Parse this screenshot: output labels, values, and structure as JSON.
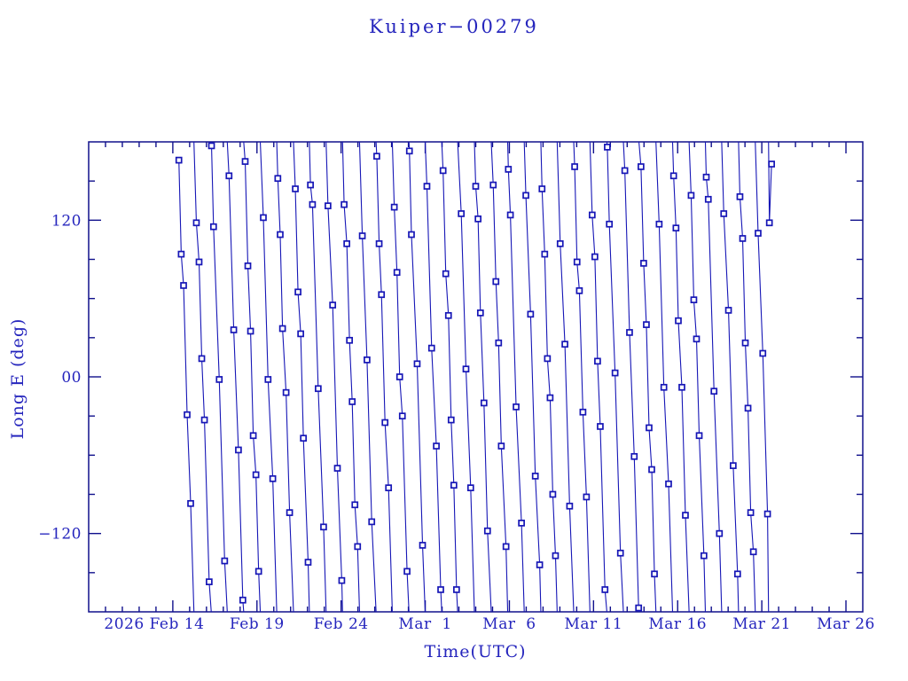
{
  "chart_data": {
    "type": "line",
    "title": "Kuiper−00279",
    "xlabel": "Time(UTC)",
    "ylabel": "Long E (deg)",
    "x_axis": {
      "domain_days": [
        0,
        46
      ],
      "minor_tick_every_days": 1,
      "major_tick_every_days": 5,
      "year_prefix": "2026",
      "ticks": [
        {
          "day": 5,
          "label": "Feb 14"
        },
        {
          "day": 10,
          "label": "Feb 19"
        },
        {
          "day": 15,
          "label": "Feb 24"
        },
        {
          "day": 20,
          "label": "Mar  1"
        },
        {
          "day": 25,
          "label": "Mar  6"
        },
        {
          "day": 30,
          "label": "Mar 11"
        },
        {
          "day": 35,
          "label": "Mar 16"
        },
        {
          "day": 40,
          "label": "Mar 21"
        },
        {
          "day": 45,
          "label": "Mar 26"
        }
      ]
    },
    "y_axis": {
      "range": [
        -180,
        180
      ],
      "minor_tick_every_deg": 30,
      "major_tick_every_deg": 120,
      "ticks": [
        {
          "value": 120,
          "label": "120"
        },
        {
          "value": 0,
          "label": "00"
        },
        {
          "value": -120,
          "label": "−120"
        }
      ]
    },
    "wrap_at_deg": 180,
    "grid": false,
    "legend": "none",
    "marker": "open-square",
    "colors": {
      "background": "#ffffff",
      "frame": "#10108c",
      "series": "#1616b6",
      "text": "#2525bd",
      "marker_fill": "#ffffff"
    },
    "series": [
      {
        "name": "Long E",
        "points": [
          [
            5.36,
            166
          ],
          [
            5.5,
            94
          ],
          [
            5.64,
            70
          ],
          [
            5.85,
            -29
          ],
          [
            6.06,
            -97
          ],
          [
            6.4,
            118
          ],
          [
            6.56,
            88
          ],
          [
            6.72,
            14
          ],
          [
            6.88,
            -33
          ],
          [
            7.16,
            -157
          ],
          [
            7.3,
            177
          ],
          [
            7.42,
            115
          ],
          [
            7.76,
            -2
          ],
          [
            8.08,
            -141
          ],
          [
            8.34,
            154
          ],
          [
            8.62,
            36
          ],
          [
            8.9,
            -56
          ],
          [
            9.16,
            -171
          ],
          [
            9.3,
            165
          ],
          [
            9.46,
            85
          ],
          [
            9.62,
            35
          ],
          [
            9.78,
            -45
          ],
          [
            9.94,
            -75
          ],
          [
            10.1,
            -149
          ],
          [
            10.38,
            122
          ],
          [
            10.66,
            -2
          ],
          [
            10.94,
            -78
          ],
          [
            11.24,
            152
          ],
          [
            11.38,
            109
          ],
          [
            11.52,
            37
          ],
          [
            11.73,
            -12
          ],
          [
            11.94,
            -104
          ],
          [
            12.28,
            144
          ],
          [
            12.44,
            65
          ],
          [
            12.6,
            33
          ],
          [
            12.76,
            -47
          ],
          [
            13.04,
            -142
          ],
          [
            13.18,
            147
          ],
          [
            13.3,
            132
          ],
          [
            13.64,
            -9
          ],
          [
            13.96,
            -115
          ],
          [
            14.22,
            131
          ],
          [
            14.5,
            55
          ],
          [
            14.78,
            -70
          ],
          [
            15.04,
            -156
          ],
          [
            15.18,
            132
          ],
          [
            15.34,
            102
          ],
          [
            15.5,
            28
          ],
          [
            15.66,
            -19
          ],
          [
            15.82,
            -98
          ],
          [
            15.98,
            -130
          ],
          [
            16.26,
            108
          ],
          [
            16.54,
            13
          ],
          [
            16.82,
            -111
          ],
          [
            17.12,
            169
          ],
          [
            17.26,
            102
          ],
          [
            17.4,
            63
          ],
          [
            17.61,
            -35
          ],
          [
            17.82,
            -85
          ],
          [
            18.16,
            130
          ],
          [
            18.32,
            80
          ],
          [
            18.48,
            0
          ],
          [
            18.64,
            -30
          ],
          [
            18.92,
            -149
          ],
          [
            19.06,
            173
          ],
          [
            19.18,
            109
          ],
          [
            19.52,
            10
          ],
          [
            19.84,
            -129
          ],
          [
            20.1,
            146
          ],
          [
            20.38,
            22
          ],
          [
            20.66,
            -53
          ],
          [
            20.92,
            -163
          ],
          [
            21.06,
            158
          ],
          [
            21.22,
            79
          ],
          [
            21.38,
            47
          ],
          [
            21.54,
            -33
          ],
          [
            21.7,
            -83
          ],
          [
            21.86,
            -163
          ],
          [
            22.14,
            125
          ],
          [
            22.42,
            6
          ],
          [
            22.7,
            -85
          ],
          [
            23.0,
            146
          ],
          [
            23.14,
            121
          ],
          [
            23.28,
            49
          ],
          [
            23.49,
            -20
          ],
          [
            23.7,
            -118
          ],
          [
            24.04,
            147
          ],
          [
            24.2,
            73
          ],
          [
            24.36,
            26
          ],
          [
            24.52,
            -53
          ],
          [
            24.8,
            -130
          ],
          [
            24.94,
            159
          ],
          [
            25.06,
            124
          ],
          [
            25.4,
            -23
          ],
          [
            25.72,
            -112
          ],
          [
            25.98,
            139
          ],
          [
            26.26,
            48
          ],
          [
            26.54,
            -76
          ],
          [
            26.8,
            -144
          ],
          [
            26.94,
            144
          ],
          [
            27.1,
            94
          ],
          [
            27.26,
            14
          ],
          [
            27.42,
            -16
          ],
          [
            27.58,
            -90
          ],
          [
            27.74,
            -137
          ],
          [
            28.02,
            102
          ],
          [
            28.3,
            25
          ],
          [
            28.58,
            -99
          ],
          [
            28.88,
            161
          ],
          [
            29.02,
            88
          ],
          [
            29.16,
            66
          ],
          [
            29.37,
            -27
          ],
          [
            29.58,
            -92
          ],
          [
            29.92,
            124
          ],
          [
            30.08,
            92
          ],
          [
            30.24,
            12
          ],
          [
            30.4,
            -38
          ],
          [
            30.68,
            -163
          ],
          [
            30.82,
            176
          ],
          [
            30.94,
            117
          ],
          [
            31.28,
            3
          ],
          [
            31.6,
            -135
          ],
          [
            31.86,
            158
          ],
          [
            32.14,
            34
          ],
          [
            32.42,
            -61
          ],
          [
            32.68,
            -177
          ],
          [
            32.82,
            161
          ],
          [
            32.98,
            87
          ],
          [
            33.14,
            40
          ],
          [
            33.3,
            -39
          ],
          [
            33.46,
            -71
          ],
          [
            33.62,
            -151
          ],
          [
            33.9,
            117
          ],
          [
            34.18,
            -8
          ],
          [
            34.46,
            -82
          ],
          [
            34.76,
            154
          ],
          [
            34.9,
            114
          ],
          [
            35.04,
            43
          ],
          [
            35.25,
            -8
          ],
          [
            35.46,
            -106
          ],
          [
            35.8,
            139
          ],
          [
            35.96,
            59
          ],
          [
            36.12,
            29
          ],
          [
            36.28,
            -45
          ],
          [
            36.56,
            -137
          ],
          [
            36.7,
            153
          ],
          [
            36.82,
            136
          ],
          [
            37.16,
            -11
          ],
          [
            37.48,
            -120
          ],
          [
            37.74,
            125
          ],
          [
            38.02,
            51
          ],
          [
            38.3,
            -68
          ],
          [
            38.56,
            -151
          ],
          [
            38.7,
            138
          ],
          [
            38.86,
            106
          ],
          [
            39.02,
            26
          ],
          [
            39.18,
            -24
          ],
          [
            39.34,
            -104
          ],
          [
            39.5,
            -134
          ],
          [
            39.78,
            110
          ],
          [
            40.06,
            18
          ],
          [
            40.34,
            -105
          ],
          [
            40.45,
            118
          ],
          [
            40.58,
            163
          ]
        ]
      }
    ]
  }
}
